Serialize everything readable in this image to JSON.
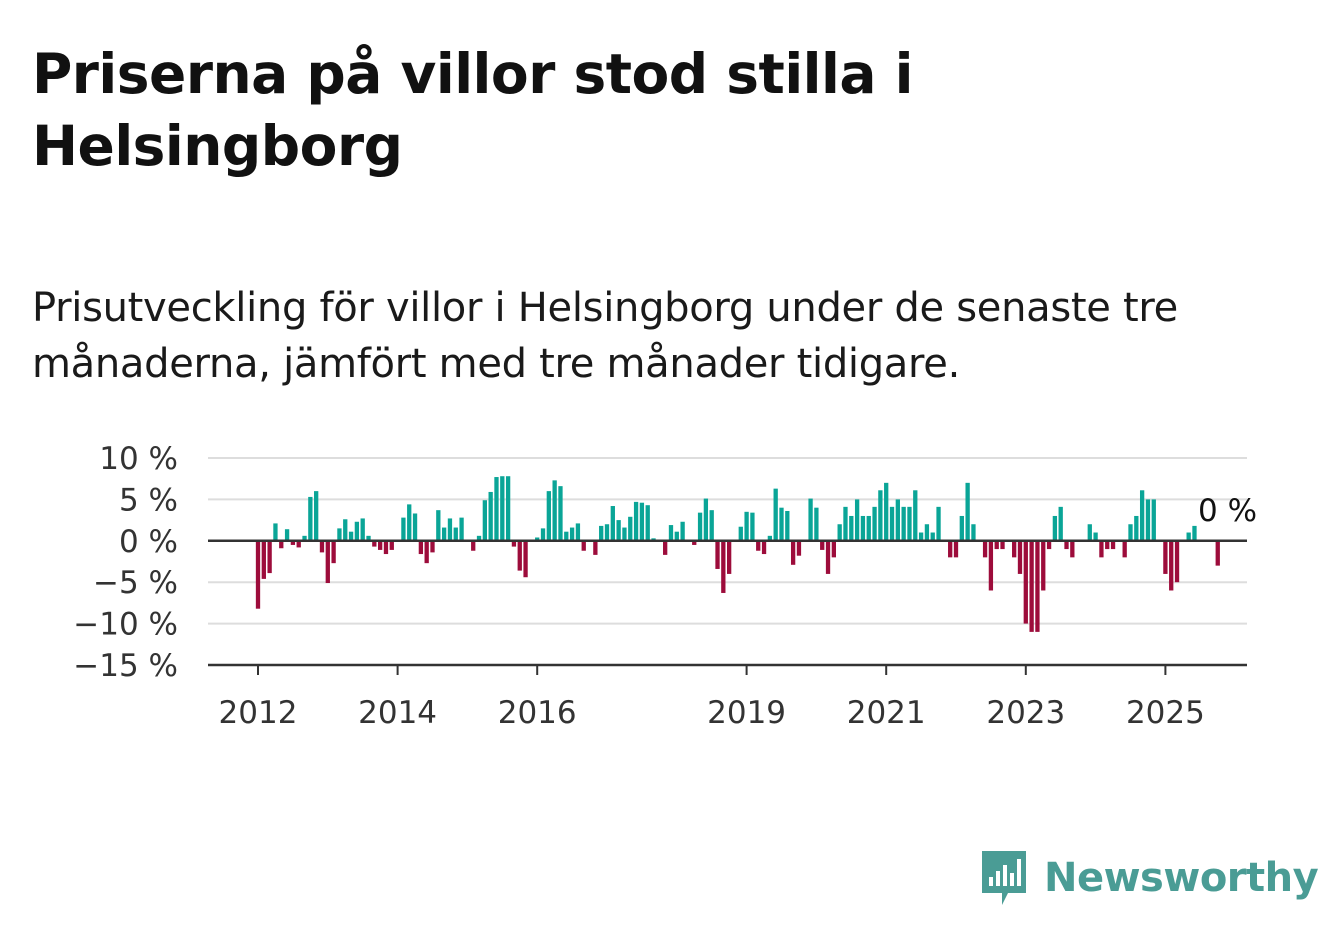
{
  "title": "Priserna på villor stod stilla i Helsingborg",
  "subtitle": "Prisutveckling för villor i Helsingborg under de senaste tre månaderna, jämfört med tre månader tidigare.",
  "logo": {
    "name": "Newsworthy",
    "color": "#4a9c95"
  },
  "colors": {
    "positive": "#0aa597",
    "negative": "#9d0c3b",
    "grid": "#dddddd",
    "axis": "#333333"
  },
  "chart_data": {
    "type": "bar",
    "title": "",
    "xlabel": "",
    "ylabel": "",
    "ylim": [
      -15,
      10
    ],
    "yticks": [
      10,
      5,
      0,
      -5,
      -10,
      -15
    ],
    "ytick_labels": [
      "10 %",
      "5 %",
      "0 %",
      "−5 %",
      "−10 %",
      "−15 %"
    ],
    "xticks": [
      {
        "year": 2012,
        "label": "2012"
      },
      {
        "year": 2014,
        "label": "2014"
      },
      {
        "year": 2016,
        "label": "2016"
      },
      {
        "year": 2019,
        "label": "2019"
      },
      {
        "year": 2021,
        "label": "2021"
      },
      {
        "year": 2023,
        "label": "2023"
      },
      {
        "year": 2025,
        "label": "2025"
      }
    ],
    "grid": true,
    "last_value_label": "0 %",
    "start_month": "2012-01",
    "series": [
      {
        "values": [
          -8.2,
          -4.6,
          -3.9,
          2.1,
          -0.9,
          1.4,
          -0.5,
          -0.8,
          0.6,
          5.3,
          6.0,
          -1.4,
          -5.1,
          -2.7,
          1.5,
          2.6,
          1.1,
          2.3,
          2.7,
          0.6,
          -0.7,
          -1.1,
          -1.6,
          -1.1,
          0.0,
          2.8,
          4.4,
          3.3,
          -1.6,
          -2.7,
          -1.4,
          3.7,
          1.6,
          2.7,
          1.6,
          2.8,
          0.0,
          -1.2,
          0.6,
          4.9,
          5.9,
          7.7,
          7.8,
          7.8,
          -0.7,
          -3.6,
          -4.4,
          0.0,
          0.4,
          1.5,
          6.0,
          7.3,
          6.6,
          1.1,
          1.6,
          2.1,
          -1.2,
          0.0,
          -1.7,
          1.8,
          2.0,
          4.2,
          2.5,
          1.6,
          2.9,
          4.7,
          4.6,
          4.3,
          0.3,
          0.0,
          -1.7,
          1.9,
          1.1,
          2.3,
          0.0,
          -0.5,
          3.4,
          5.1,
          3.7,
          -3.4,
          -6.3,
          -4.0,
          0.0,
          1.7,
          3.5,
          3.4,
          -1.2,
          -1.6,
          0.6,
          6.3,
          4.0,
          3.6,
          -2.9,
          -1.8,
          0.0,
          5.1,
          4.0,
          -1.1,
          -4.0,
          -2.0,
          2.0,
          4.1,
          3.0,
          5.0,
          3.0,
          3.0,
          4.1,
          6.1,
          7.0,
          4.1,
          5.0,
          4.1,
          4.1,
          6.1,
          1.0,
          2.0,
          1.0,
          4.1,
          0.0,
          -2.0,
          -2.0,
          3.0,
          7.0,
          2.0,
          0.0,
          -2.0,
          -6.0,
          -1.0,
          -1.0,
          0.0,
          -2.0,
          -4.0,
          -10.0,
          -11.0,
          -11.0,
          -6.0,
          -1.0,
          3.0,
          4.1,
          -1.0,
          -2.0,
          0.0,
          0.0,
          2.0,
          1.0,
          -2.0,
          -1.0,
          -1.0,
          0.0,
          -2.0,
          2.0,
          3.0,
          6.1,
          5.0,
          5.0,
          0.0,
          -4.0,
          -6.0,
          -5.0,
          0.0,
          1.0,
          1.8,
          0.0,
          0.0,
          0.0,
          -3.0,
          0.0
        ]
      }
    ]
  }
}
